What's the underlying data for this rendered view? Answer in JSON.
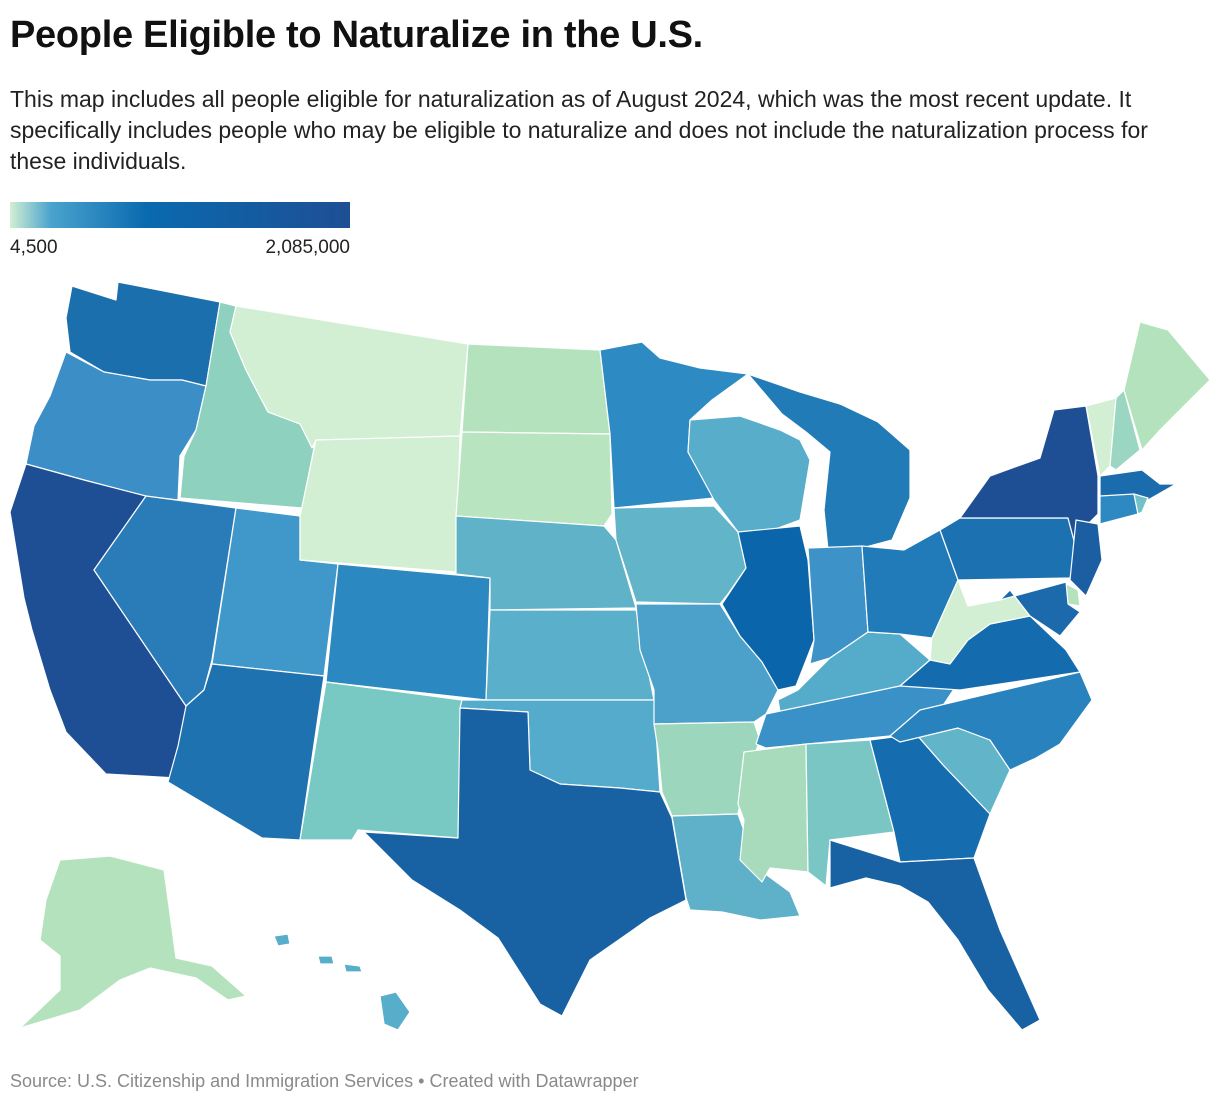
{
  "header": {
    "title": "People Eligible to Naturalize in the U.S.",
    "subtitle": "This map includes all people eligible for naturalization as of August 2024, which was the most recent update. It specifically includes people who may be eligible to naturalize and does not include the naturalization process for these individuals."
  },
  "legend": {
    "min_label": "4,500",
    "max_label": "2,085,000",
    "colors": [
      "#d2efd3",
      "#b4e2bd",
      "#78c8c4",
      "#4aa3cd",
      "#0a6aaf",
      "#1e4e94"
    ]
  },
  "footer": {
    "text": "Source: U.S. Citizenship and Immigration Services • Created with Datawrapper"
  },
  "map_data": {
    "type": "choropleth",
    "region": "United States",
    "states": [
      {
        "name": "Washington",
        "color": "#1c6fad"
      },
      {
        "name": "Oregon",
        "color": "#3b8fc6"
      },
      {
        "name": "California",
        "color": "#1e4e94"
      },
      {
        "name": "Idaho",
        "color": "#8ed1bf"
      },
      {
        "name": "Nevada",
        "color": "#2a7cb8"
      },
      {
        "name": "Utah",
        "color": "#4097c9"
      },
      {
        "name": "Arizona",
        "color": "#1f72b0"
      },
      {
        "name": "Montana",
        "color": "#d2efd3"
      },
      {
        "name": "Wyoming",
        "color": "#d2efd3"
      },
      {
        "name": "Colorado",
        "color": "#2c88c1"
      },
      {
        "name": "New Mexico",
        "color": "#78c8c4"
      },
      {
        "name": "North Dakota",
        "color": "#b4e2bd"
      },
      {
        "name": "South Dakota",
        "color": "#b9e4c0"
      },
      {
        "name": "Nebraska",
        "color": "#5fb2c8"
      },
      {
        "name": "Kansas",
        "color": "#5aafcb"
      },
      {
        "name": "Oklahoma",
        "color": "#54abcb"
      },
      {
        "name": "Texas",
        "color": "#1862a4"
      },
      {
        "name": "Minnesota",
        "color": "#2e8ac2"
      },
      {
        "name": "Iowa",
        "color": "#62b4c8"
      },
      {
        "name": "Missouri",
        "color": "#4ba1ca"
      },
      {
        "name": "Arkansas",
        "color": "#9cd7bd"
      },
      {
        "name": "Louisiana",
        "color": "#5eb1c9"
      },
      {
        "name": "Wisconsin",
        "color": "#57adca"
      },
      {
        "name": "Illinois",
        "color": "#0a65aa"
      },
      {
        "name": "Michigan",
        "color": "#217bb7"
      },
      {
        "name": "Indiana",
        "color": "#3d93c8"
      },
      {
        "name": "Kentucky",
        "color": "#55acca"
      },
      {
        "name": "Tennessee",
        "color": "#3a91c7"
      },
      {
        "name": "Mississippi",
        "color": "#a7dbbb"
      },
      {
        "name": "Alabama",
        "color": "#79c6c4"
      },
      {
        "name": "Ohio",
        "color": "#217bb8"
      },
      {
        "name": "Georgia",
        "color": "#156db0"
      },
      {
        "name": "Florida",
        "color": "#1862a4"
      },
      {
        "name": "South Carolina",
        "color": "#62b4c9"
      },
      {
        "name": "North Carolina",
        "color": "#2882bd"
      },
      {
        "name": "Virginia",
        "color": "#146cae"
      },
      {
        "name": "West Virginia",
        "color": "#d2efd3"
      },
      {
        "name": "Pennsylvania",
        "color": "#1c72b1"
      },
      {
        "name": "New York",
        "color": "#1e4f95"
      },
      {
        "name": "Vermont",
        "color": "#d2efd3"
      },
      {
        "name": "New Hampshire",
        "color": "#9bd6c2"
      },
      {
        "name": "Maine",
        "color": "#b4e2bd"
      },
      {
        "name": "Massachusetts",
        "color": "#1a6cad"
      },
      {
        "name": "Connecticut",
        "color": "#2e88c1"
      },
      {
        "name": "Rhode Island",
        "color": "#72c1c6"
      },
      {
        "name": "New Jersey",
        "color": "#1b5ea2"
      },
      {
        "name": "Delaware",
        "color": "#b4e2bd"
      },
      {
        "name": "Maryland",
        "color": "#1c6aac"
      },
      {
        "name": "Alaska",
        "color": "#b4e2bd"
      },
      {
        "name": "Hawaii",
        "color": "#56aecb"
      }
    ]
  }
}
